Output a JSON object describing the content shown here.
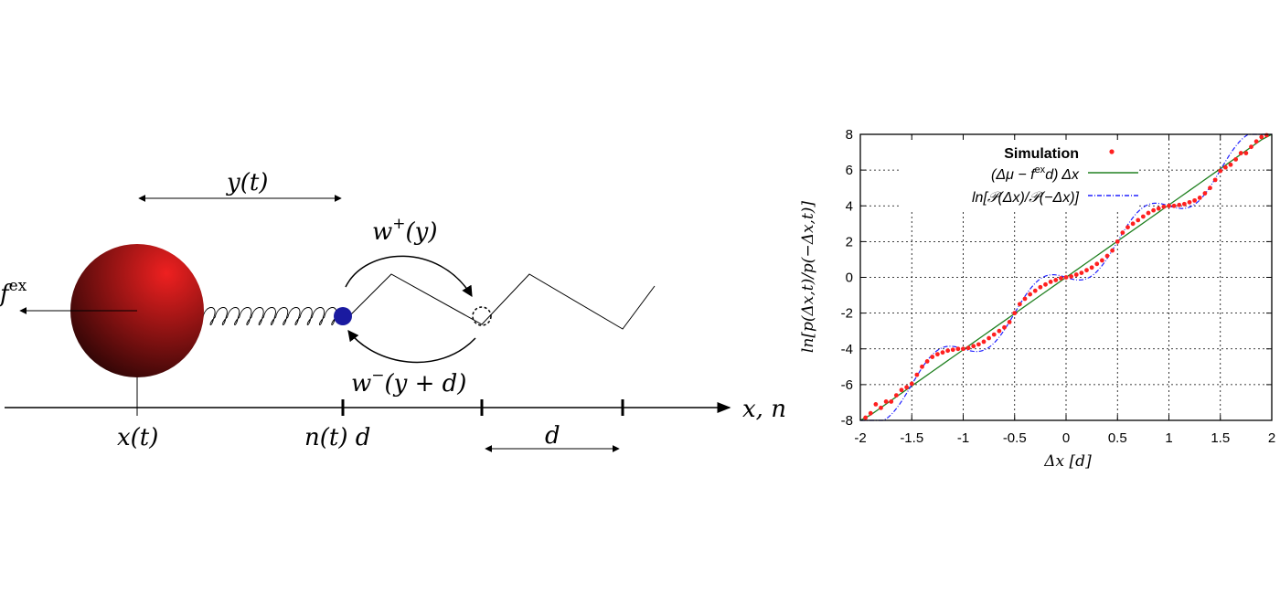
{
  "diagram": {
    "labels": {
      "f_ex": "f",
      "f_ex_sup": "ex",
      "y_t": "y(t)",
      "w_plus": "w",
      "w_plus_sup": "+",
      "w_plus_arg": "(y)",
      "w_minus": "w",
      "w_minus_sup": "−",
      "w_minus_arg": "(y + d)",
      "x_t": "x(t)",
      "n_t_d": "n(t) d",
      "d": "d",
      "axis": "x, n"
    },
    "colors": {
      "sphere_light": "#ee2020",
      "sphere_dark": "#2a0505",
      "motor": "#1a1aa0"
    }
  },
  "chart_data": {
    "type": "scatter",
    "xlabel": "Δx [d]",
    "ylabel": "ln[p(Δx,t)/p(−Δx,t)]",
    "xlim": [
      -2,
      2
    ],
    "ylim": [
      -8,
      8
    ],
    "xticks": [
      "-2",
      "-1.5",
      "-1",
      "-0.5",
      "0",
      "0.5",
      "1",
      "1.5",
      "2"
    ],
    "yticks": [
      "-8",
      "-6",
      "-4",
      "-2",
      "0",
      "2",
      "4",
      "6",
      "8"
    ],
    "grid": true,
    "legend_position": "top-left",
    "colors": {
      "simulation": "#ff2020",
      "linear": "#208020",
      "theory": "#2020ff"
    },
    "series": [
      {
        "name": "Simulation",
        "kind": "points",
        "x": [
          -1.95,
          -1.9,
          -1.85,
          -1.8,
          -1.75,
          -1.7,
          -1.65,
          -1.6,
          -1.55,
          -1.5,
          -1.45,
          -1.4,
          -1.35,
          -1.3,
          -1.25,
          -1.2,
          -1.15,
          -1.1,
          -1.05,
          -1.0,
          -0.95,
          -0.9,
          -0.85,
          -0.8,
          -0.75,
          -0.7,
          -0.65,
          -0.6,
          -0.55,
          -0.5,
          -0.45,
          -0.4,
          -0.35,
          -0.3,
          -0.25,
          -0.2,
          -0.15,
          -0.1,
          -0.05,
          0.0,
          0.05,
          0.1,
          0.15,
          0.2,
          0.25,
          0.3,
          0.35,
          0.4,
          0.45,
          0.5,
          0.55,
          0.6,
          0.65,
          0.7,
          0.75,
          0.8,
          0.85,
          0.9,
          0.95,
          1.0,
          1.05,
          1.1,
          1.15,
          1.2,
          1.25,
          1.3,
          1.35,
          1.4,
          1.45,
          1.5,
          1.55,
          1.6,
          1.65,
          1.7,
          1.75,
          1.8,
          1.85,
          1.9,
          1.95
        ],
        "y": [
          -7.85,
          -7.6,
          -7.1,
          -7.3,
          -6.95,
          -6.95,
          -6.6,
          -6.3,
          -6.15,
          -5.95,
          -5.45,
          -5.0,
          -4.7,
          -4.45,
          -4.3,
          -4.2,
          -4.1,
          -4.05,
          -4.0,
          -4.0,
          -3.95,
          -3.85,
          -3.75,
          -3.6,
          -3.4,
          -3.2,
          -3.0,
          -2.8,
          -2.5,
          -2.0,
          -1.5,
          -1.2,
          -0.95,
          -0.75,
          -0.55,
          -0.4,
          -0.25,
          -0.15,
          -0.05,
          0.0,
          0.05,
          0.15,
          0.25,
          0.4,
          0.55,
          0.75,
          0.95,
          1.2,
          1.5,
          2.0,
          2.5,
          2.8,
          3.0,
          3.2,
          3.4,
          3.6,
          3.75,
          3.85,
          3.95,
          4.0,
          4.0,
          4.05,
          4.1,
          4.2,
          4.3,
          4.45,
          4.7,
          5.0,
          5.45,
          5.95,
          6.15,
          6.3,
          6.6,
          6.95,
          6.95,
          7.3,
          7.6,
          7.85,
          7.95
        ]
      },
      {
        "name": "(Δμ − f^ex d) Δx",
        "kind": "line",
        "slope": 4.05
      },
      {
        "name": "ln[𝒫(Δx)/𝒫(−Δx)]",
        "kind": "dashed",
        "amplitude": 0.6
      }
    ]
  }
}
